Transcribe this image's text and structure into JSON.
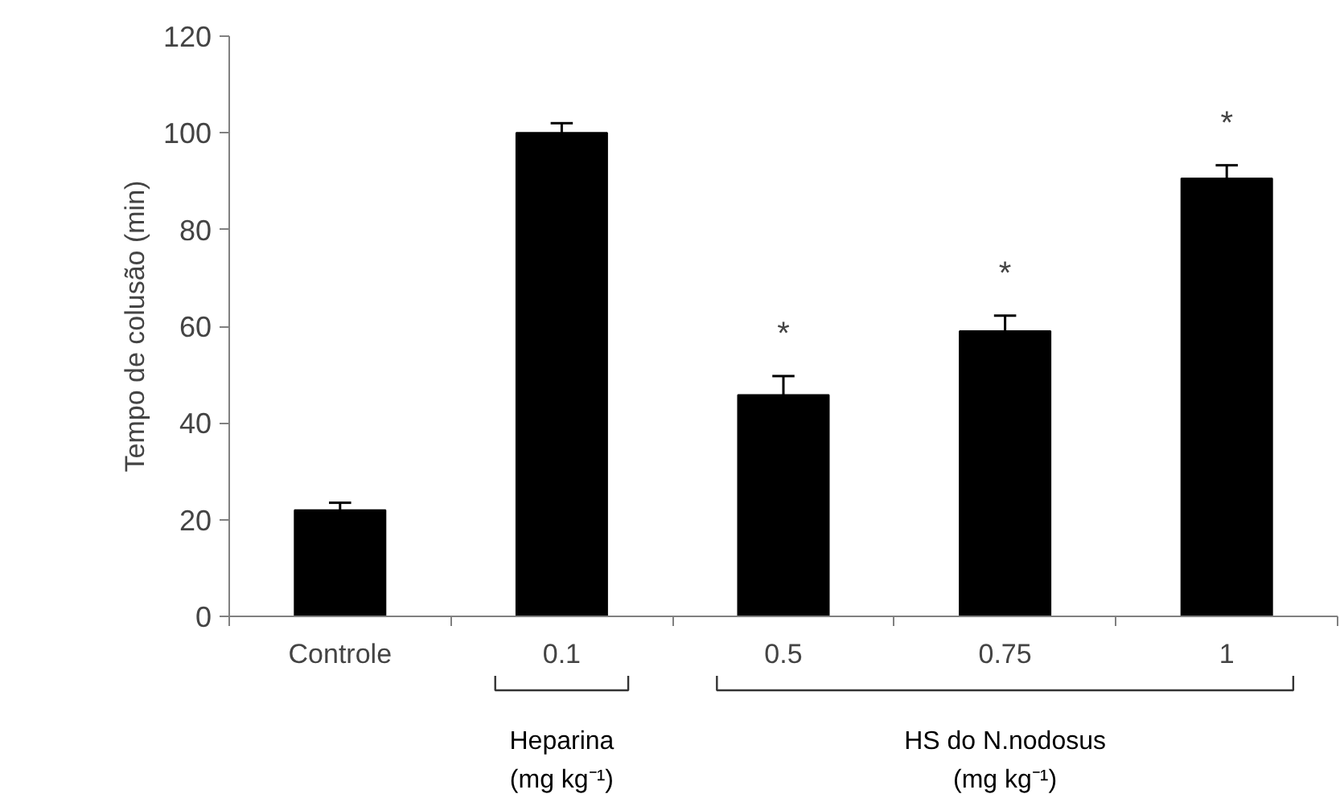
{
  "chart_data": {
    "type": "bar",
    "ylabel": "Tempo de colusão (min)",
    "categories": [
      "Controle",
      "0.1",
      "0.5",
      "0.75",
      "1"
    ],
    "values": [
      22,
      100,
      45.8,
      59,
      90.6
    ],
    "errors": [
      [
        22,
        23.5
      ],
      [
        100,
        102
      ],
      [
        45.8,
        49.7
      ],
      [
        59,
        62.2
      ],
      [
        90.6,
        93.3
      ]
    ],
    "color": "#000000",
    "ylim": [
      0,
      120
    ],
    "yticks": [
      0,
      20,
      40,
      60,
      80,
      100,
      120
    ],
    "grid": false,
    "annotations": [
      "*",
      "*",
      "*",
      "Heparina\n(mg kg⁻¹)",
      "HS do N.nodosus\n(mg kg⁻¹)"
    ]
  }
}
